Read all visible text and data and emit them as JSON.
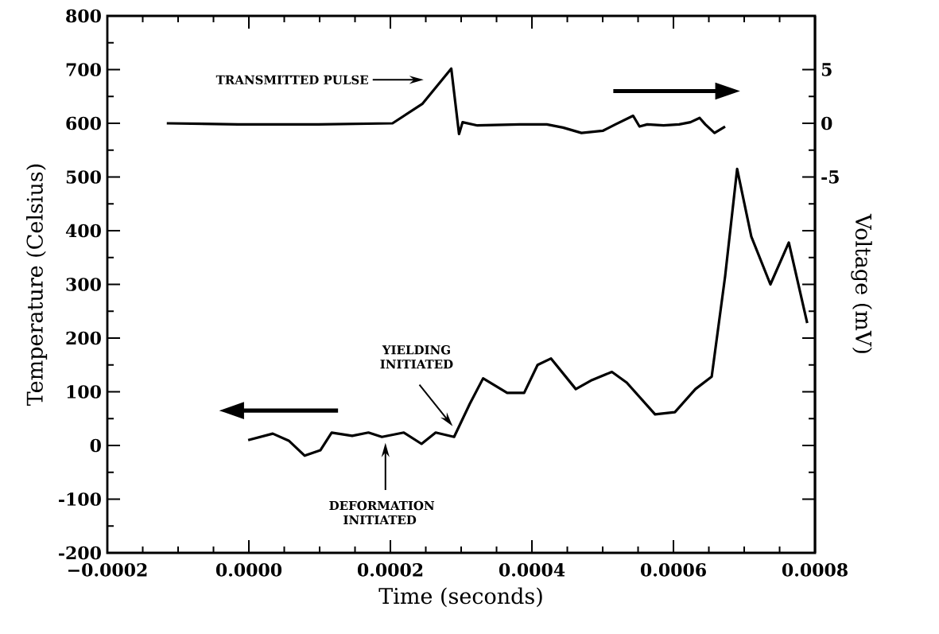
{
  "chart_data": {
    "type": "line",
    "xlabel": "Time (seconds)",
    "ylabel": "Temperature (Celsius)",
    "y2label": "Voltage (mV)",
    "xlim": [
      -0.0002,
      0.0008
    ],
    "xticks": [
      {
        "value": -0.0002,
        "label": "−0.0002"
      },
      {
        "value": 0,
        "label": "0.0000"
      },
      {
        "value": 0.0002,
        "label": "0.0002"
      },
      {
        "value": 0.0004,
        "label": "0.0004"
      },
      {
        "value": 0.0006,
        "label": "0.0006"
      },
      {
        "value": 0.0008,
        "label": "0.0008"
      }
    ],
    "ylim": [
      -200,
      800
    ],
    "yticks": [
      -200,
      -100,
      0,
      100,
      200,
      300,
      400,
      500,
      600,
      700,
      800
    ],
    "y2lim": [
      -40,
      10
    ],
    "y2ticks": [
      {
        "value": -35,
        "label": null
      },
      {
        "value": -30,
        "label": null
      },
      {
        "value": -25,
        "label": null
      },
      {
        "value": -20,
        "label": null
      },
      {
        "value": -15,
        "label": null
      },
      {
        "value": -10,
        "label": null
      },
      -5,
      0,
      5
    ],
    "series": [
      {
        "color": "#000000",
        "x": [
          -1e-06,
          3.38e-05,
          5.63e-05,
          7.89e-05,
          0.000101,
          0.000117,
          0.000146,
          0.000169,
          0.000188,
          0.000219,
          0.000244,
          0.000264,
          0.00029,
          0.000312,
          0.000331,
          0.000365,
          0.000389,
          0.000408,
          0.000427,
          0.000462,
          0.000485,
          0.000513,
          0.000534,
          0.000574,
          0.000602,
          0.000631,
          0.000654,
          0.000673,
          0.00069,
          0.00071,
          0.000737,
          0.000763,
          0.000789
        ],
        "values": [
          10,
          22,
          9,
          -19,
          -9,
          24,
          18,
          24,
          16,
          24,
          3,
          24,
          16,
          77,
          125,
          98,
          98,
          150,
          162,
          105,
          122,
          137,
          117,
          58,
          62,
          105,
          128,
          315,
          515,
          389,
          300,
          378,
          228
        ]
      },
      {
        "color": "#000000",
        "axis": "y2",
        "x": [
          -0.000116,
          -1.5e-05,
          9.8e-05,
          0.000203,
          0.000245,
          0.000286,
          0.000297,
          0.000302,
          0.000323,
          0.000383,
          0.000421,
          0.000444,
          0.00047,
          0.0005,
          0.000518,
          0.000543,
          0.000552,
          0.000563,
          0.000586,
          0.000608,
          0.000624,
          0.000637,
          0.000645,
          0.000658,
          0.000673
        ],
        "values": [
          0,
          -0.1,
          -0.1,
          0,
          1.8,
          5.1,
          -1.0,
          0.1,
          -0.2,
          -0.1,
          -0.1,
          -0.4,
          -0.9,
          -0.7,
          -0.1,
          0.7,
          -0.3,
          -0.1,
          -0.2,
          -0.1,
          0.1,
          0.5,
          -0.1,
          -0.9,
          -0.3
        ]
      }
    ],
    "annotations": [
      "TRANSMITTED PULSE",
      "YIELDING INITIATED",
      "DEFORMATION INITIATED"
    ]
  }
}
